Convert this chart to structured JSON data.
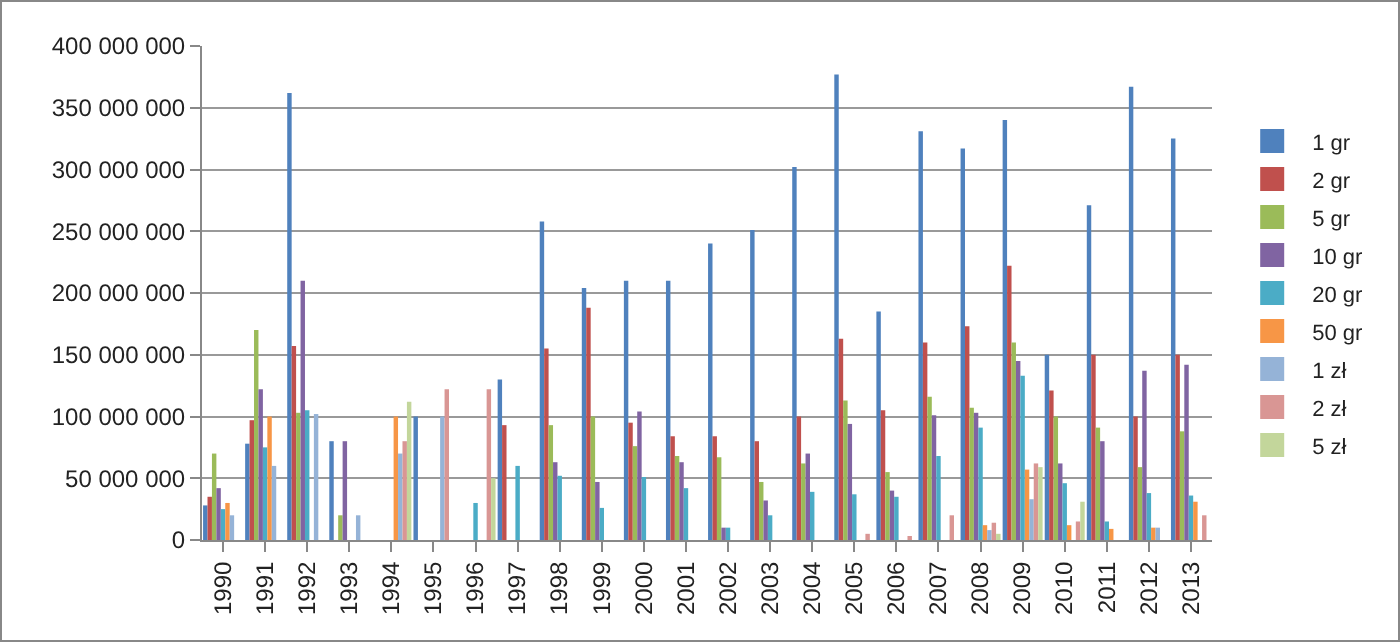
{
  "chart_data": {
    "type": "bar",
    "categories": [
      "1990",
      "1991",
      "1992",
      "1993",
      "1994",
      "1995",
      "1996",
      "1997",
      "1998",
      "1999",
      "2000",
      "2001",
      "2002",
      "2003",
      "2004",
      "2005",
      "2006",
      "2007",
      "2008",
      "2009",
      "2010",
      "2011",
      "2012",
      "2013"
    ],
    "series": [
      {
        "name": "1 gr",
        "color": "#4f81bd",
        "values": [
          28000000,
          78000000,
          362000000,
          80000000,
          null,
          100000000,
          null,
          130000000,
          258000000,
          204000000,
          210000000,
          210000000,
          240000000,
          251000000,
          302000000,
          377000000,
          185000000,
          331000000,
          317000000,
          340000000,
          150000000,
          271000000,
          367000000,
          325000000
        ]
      },
      {
        "name": "2 gr",
        "color": "#c0504d",
        "values": [
          35000000,
          97000000,
          157000000,
          null,
          null,
          null,
          null,
          93000000,
          155000000,
          188000000,
          95000000,
          84000000,
          84000000,
          80000000,
          100000000,
          163000000,
          105000000,
          160000000,
          173000000,
          222000000,
          121000000,
          150000000,
          100000000,
          150000000
        ]
      },
      {
        "name": "5 gr",
        "color": "#9bbb59",
        "values": [
          70000000,
          170000000,
          103000000,
          20000000,
          null,
          null,
          null,
          null,
          93000000,
          100000000,
          76000000,
          68000000,
          67000000,
          47000000,
          62000000,
          113000000,
          55000000,
          116000000,
          107000000,
          160000000,
          100000000,
          91000000,
          59000000,
          88000000
        ]
      },
      {
        "name": "10 gr",
        "color": "#8064a2",
        "values": [
          42000000,
          122000000,
          210000000,
          80000000,
          null,
          null,
          null,
          null,
          63000000,
          47000000,
          104000000,
          63000000,
          10000000,
          32000000,
          70000000,
          94000000,
          40000000,
          101000000,
          103000000,
          145000000,
          62000000,
          80000000,
          137000000,
          142000000
        ]
      },
      {
        "name": "20 gr",
        "color": "#4bacc6",
        "values": [
          25000000,
          75000000,
          105000000,
          null,
          null,
          null,
          30000000,
          60000000,
          52000000,
          26000000,
          51000000,
          42000000,
          10000000,
          20000000,
          39000000,
          37000000,
          35000000,
          68000000,
          91000000,
          133000000,
          46000000,
          15000000,
          38000000,
          36000000
        ]
      },
      {
        "name": "50 gr",
        "color": "#f79646",
        "values": [
          30000000,
          100000000,
          null,
          null,
          100000000,
          null,
          null,
          null,
          null,
          null,
          null,
          null,
          null,
          null,
          null,
          null,
          null,
          null,
          12000000,
          57000000,
          12000000,
          9000000,
          10000000,
          31000000
        ]
      },
      {
        "name": "1 zł",
        "color": "#95b3d7",
        "values": [
          20000000,
          60000000,
          102000000,
          20000000,
          70000000,
          100000000,
          null,
          null,
          null,
          null,
          null,
          null,
          null,
          null,
          null,
          null,
          null,
          null,
          8000000,
          33000000,
          null,
          null,
          10000000,
          null
        ]
      },
      {
        "name": "2 zł",
        "color": "#d99694",
        "values": [
          null,
          null,
          null,
          null,
          80000000,
          122000000,
          122000000,
          null,
          null,
          null,
          null,
          null,
          null,
          null,
          null,
          5000000,
          3000000,
          20000000,
          14000000,
          62000000,
          15000000,
          null,
          null,
          20000000
        ]
      },
      {
        "name": "5 zł",
        "color": "#c3d69b",
        "values": [
          null,
          null,
          null,
          null,
          112000000,
          null,
          50000000,
          null,
          null,
          null,
          null,
          null,
          null,
          null,
          null,
          null,
          null,
          null,
          5000000,
          59000000,
          31000000,
          null,
          null,
          null
        ]
      }
    ],
    "ylim": [
      0,
      400000000
    ],
    "yticks": [
      0,
      {
        "value": 50000000,
        "label": "50 000 000"
      },
      {
        "value": 100000000,
        "label": "100 000 000"
      },
      {
        "value": 150000000,
        "label": "150 000 000"
      },
      {
        "value": 200000000,
        "label": "200 000 000"
      },
      {
        "value": 250000000,
        "label": "250 000 000"
      },
      {
        "value": 300000000,
        "label": "300 000 000"
      },
      {
        "value": 350000000,
        "label": "350 000 000"
      },
      {
        "value": 400000000,
        "label": "400 000 000"
      }
    ],
    "grid": "y",
    "legend": "right"
  }
}
